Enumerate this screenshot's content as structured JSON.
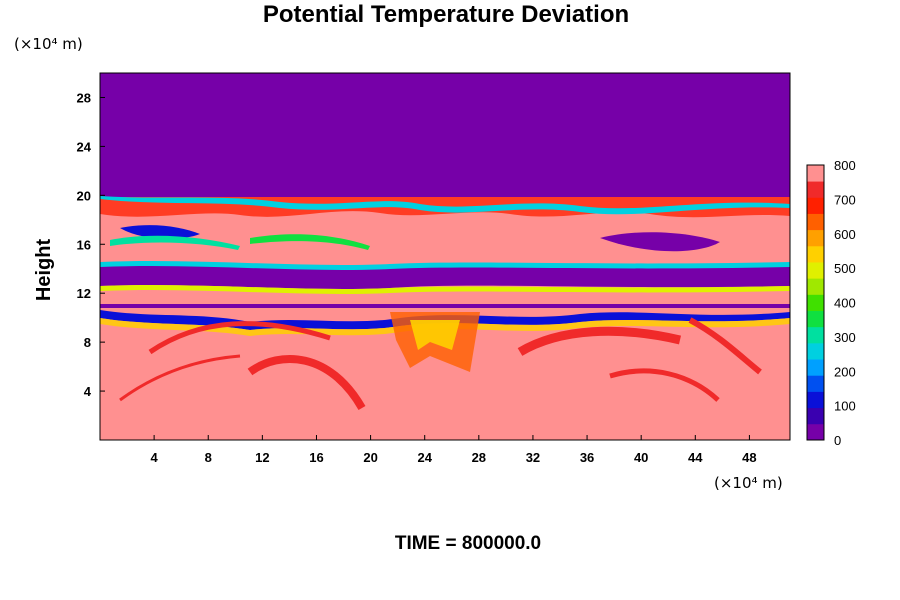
{
  "chart_data": {
    "type": "heatmap",
    "title": "Potential Temperature Deviation",
    "ylabel": "Height",
    "y_unit": "(×10⁴ m)",
    "x_unit": "(×10⁴ m)",
    "footer": "TIME = 800000.0",
    "xlim": [
      0,
      51
    ],
    "ylim": [
      0,
      30
    ],
    "x_ticks": [
      "4",
      "8",
      "12",
      "16",
      "20",
      "24",
      "28",
      "32",
      "36",
      "40",
      "44",
      "48"
    ],
    "y_ticks": [
      "4",
      "8",
      "12",
      "16",
      "20",
      "24",
      "28"
    ],
    "colorbar": {
      "min": 0,
      "max": 800,
      "ticks": [
        "0",
        "100",
        "200",
        "300",
        "400",
        "500",
        "600",
        "700",
        "800"
      ],
      "colors": [
        "#7600a8",
        "#3a00b0",
        "#0a10d8",
        "#0050f0",
        "#00a0ff",
        "#00d0e0",
        "#00e0a0",
        "#10e040",
        "#40e000",
        "#a0e800",
        "#e0f000",
        "#ffd000",
        "#ffa000",
        "#ff6000",
        "#ff2000",
        "#f02a2a",
        "#ff9090"
      ]
    },
    "field_regions": [
      {
        "name": "upper-layer",
        "y_range": [
          19.8,
          30
        ],
        "value": 0
      },
      {
        "name": "mid-layer",
        "y_range": [
          11,
          19.8
        ],
        "value": "mixed"
      },
      {
        "name": "lower-layer",
        "y_range": [
          0,
          11
        ],
        "value": 800
      }
    ]
  }
}
